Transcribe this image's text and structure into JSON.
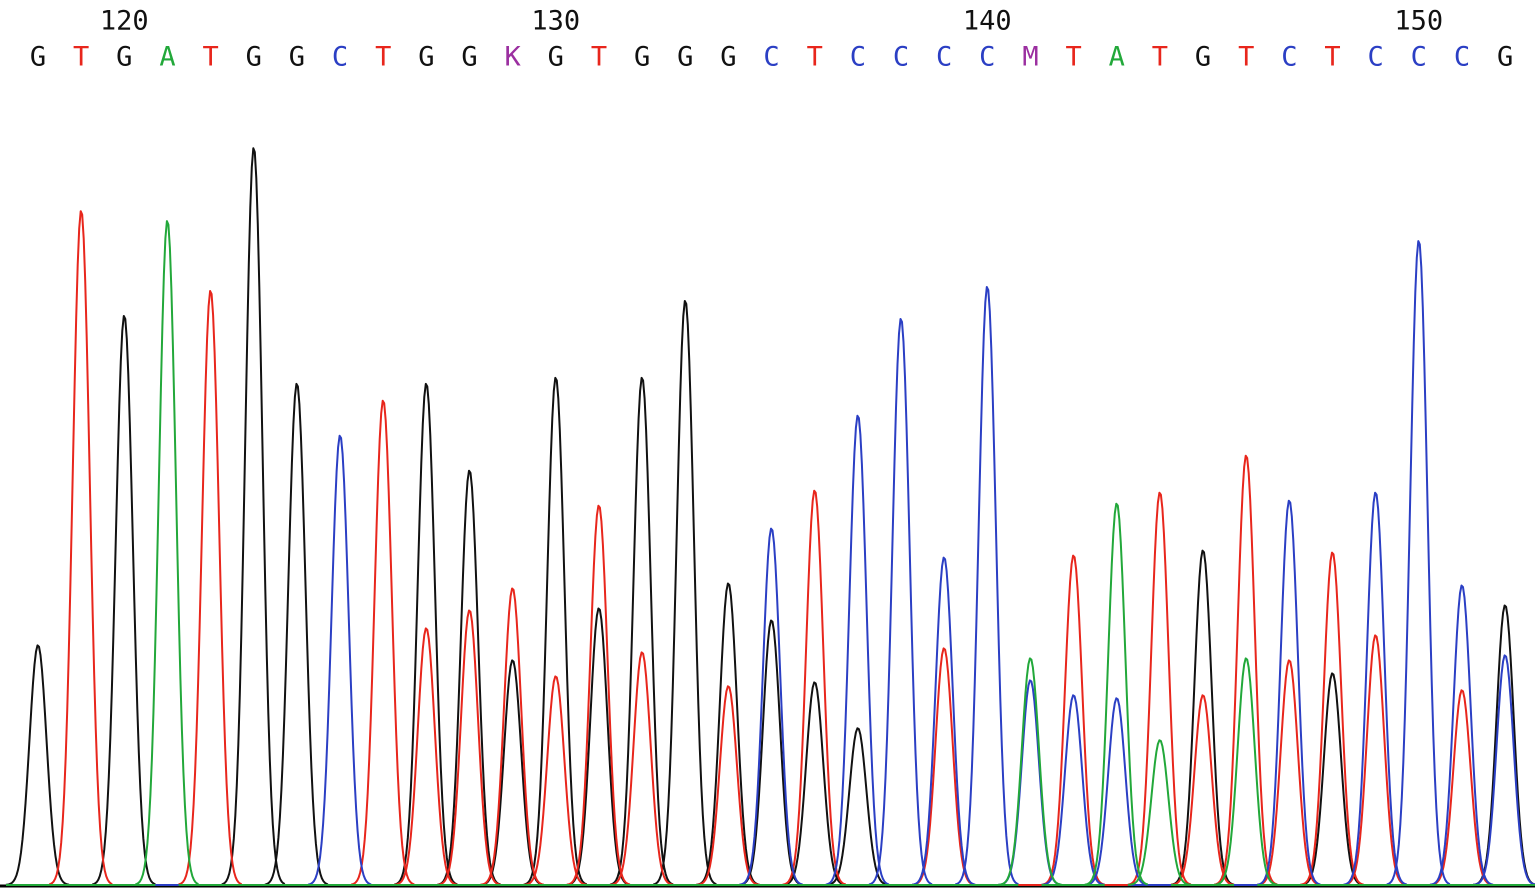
{
  "chart_data": {
    "type": "chromatogram",
    "x": [
      118,
      119,
      120,
      121,
      122,
      123,
      124,
      125,
      126,
      127,
      128,
      129,
      130,
      131,
      132,
      133,
      134,
      135,
      136,
      137,
      138,
      139,
      140,
      141,
      142,
      143,
      144,
      145,
      146,
      147,
      148,
      149,
      150,
      151,
      152
    ],
    "xticks": [
      120,
      130,
      140,
      150
    ],
    "bases": [
      "G",
      "T",
      "G",
      "A",
      "T",
      "G",
      "G",
      "C",
      "T",
      "G",
      "G",
      "K",
      "G",
      "T",
      "G",
      "G",
      "G",
      "C",
      "T",
      "C",
      "C",
      "C",
      "C",
      "M",
      "T",
      "A",
      "T",
      "G",
      "T",
      "C",
      "T",
      "C",
      "C",
      "C",
      "G"
    ],
    "base_colors": {
      "G": "#111111",
      "T": "#e8261c",
      "A": "#22a83a",
      "C": "#2b3fc4",
      "K": "#9b2fa0",
      "M": "#9b2fa0"
    },
    "series": [
      {
        "color": "#111111",
        "values": [
          240,
          0,
          570,
          0,
          0,
          738,
          502,
          0,
          0,
          502,
          415,
          225,
          508,
          277,
          508,
          585,
          302,
          265,
          203,
          157,
          0,
          0,
          0,
          0,
          0,
          0,
          0,
          335,
          0,
          0,
          212,
          0,
          0,
          0,
          280
        ]
      },
      {
        "color": "#e8261c",
        "values": [
          0,
          675,
          0,
          0,
          595,
          0,
          0,
          0,
          485,
          257,
          275,
          297,
          209,
          380,
          233,
          0,
          199,
          0,
          395,
          0,
          0,
          237,
          0,
          0,
          330,
          0,
          393,
          190,
          430,
          225,
          333,
          250,
          0,
          195,
          0
        ]
      },
      {
        "color": "#2b3fc4",
        "values": [
          0,
          0,
          0,
          0,
          0,
          0,
          0,
          450,
          0,
          0,
          0,
          0,
          0,
          0,
          0,
          0,
          0,
          357,
          0,
          470,
          567,
          328,
          599,
          205,
          190,
          187,
          0,
          0,
          0,
          385,
          0,
          393,
          645,
          300,
          230
        ]
      },
      {
        "color": "#22a83a",
        "values": [
          0,
          0,
          0,
          665,
          0,
          0,
          0,
          0,
          0,
          0,
          0,
          0,
          0,
          0,
          0,
          0,
          0,
          0,
          0,
          0,
          0,
          0,
          0,
          227,
          0,
          382,
          145,
          0,
          227,
          0,
          0,
          0,
          0,
          0,
          0
        ]
      }
    ]
  }
}
